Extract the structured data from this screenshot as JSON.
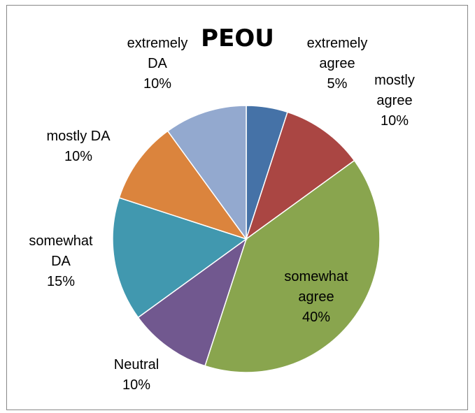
{
  "chart_data": {
    "type": "pie",
    "title": "PEOU",
    "slices": [
      {
        "label": "extremely agree",
        "label_lines": [
          "extremely",
          "agree"
        ],
        "percent_label": "5%",
        "value": 5,
        "color": "#4572A7"
      },
      {
        "label": "mostly agree",
        "label_lines": [
          "mostly",
          "agree"
        ],
        "percent_label": "10%",
        "value": 10,
        "color": "#AA4643"
      },
      {
        "label": "somewhat agree",
        "label_lines": [
          "somewhat",
          "agree"
        ],
        "percent_label": "40%",
        "value": 40,
        "color": "#89A54E"
      },
      {
        "label": "Neutral",
        "label_lines": [
          "Neutral"
        ],
        "percent_label": "10%",
        "value": 10,
        "color": "#71588F"
      },
      {
        "label": "somewhat DA",
        "label_lines": [
          "somewhat",
          "DA"
        ],
        "percent_label": "15%",
        "value": 15,
        "color": "#4198AF"
      },
      {
        "label": "mostly DA",
        "label_lines": [
          "mostly DA"
        ],
        "percent_label": "10%",
        "value": 10,
        "color": "#DB843D"
      },
      {
        "label": "extremely DA",
        "label_lines": [
          "extremely",
          "DA"
        ],
        "percent_label": "10%",
        "value": 10,
        "color": "#93A9CF"
      }
    ],
    "legend": "none"
  }
}
